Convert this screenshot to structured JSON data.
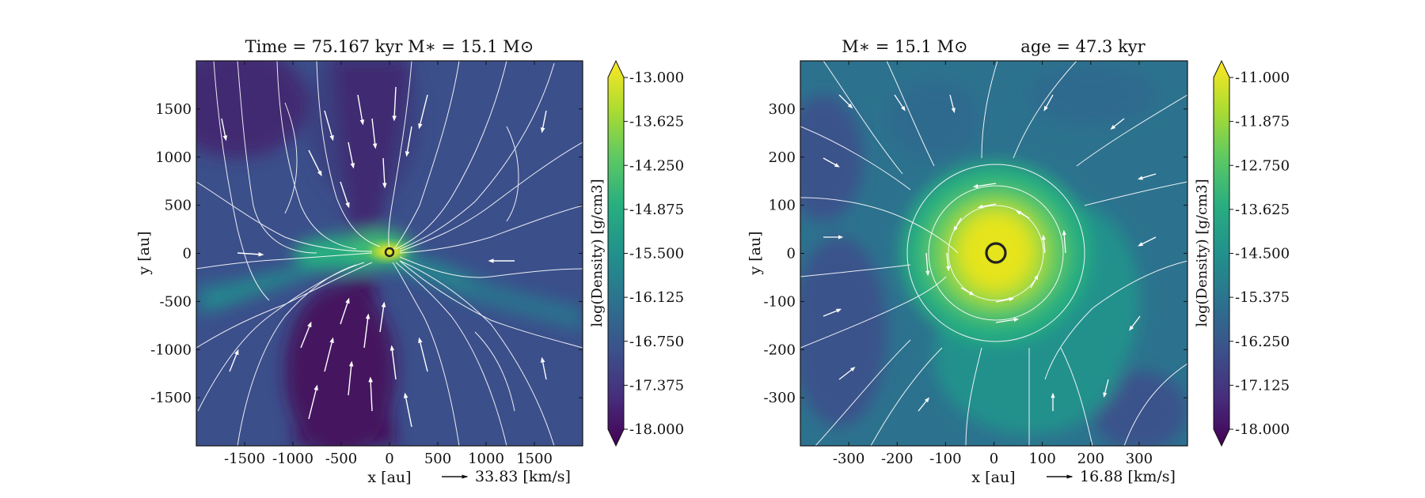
{
  "chart_data": [
    {
      "type": "heatmap",
      "title": "Time = 75.167 kyr    M∗ = 15.1 M⊙",
      "xlabel": "x [au]",
      "ylabel": "y [au]",
      "xlim": [
        -2000,
        2000
      ],
      "ylim": [
        -2000,
        2000
      ],
      "xticks": [
        -1500,
        -1000,
        -500,
        0,
        500,
        1000,
        1500
      ],
      "yticks": [
        1500,
        1000,
        500,
        0,
        -500,
        -1000,
        -1500
      ],
      "colorbar": {
        "label": "log(Density) [g/cm3]",
        "ticks": [
          "-13.000",
          "-13.625",
          "-14.250",
          "-14.875",
          "-15.500",
          "-16.125",
          "-16.750",
          "-17.375",
          "-18.000"
        ],
        "min": -18.0,
        "max": -13.0,
        "colormap": "viridis"
      },
      "velocity_key": "33.83 [km/s]",
      "star": {
        "x": 0,
        "y": 0
      },
      "field": "bipolar outflow with equatorial disk"
    },
    {
      "type": "heatmap",
      "title": "M∗ = 15.1 M⊙          age = 47.3 kyr",
      "xlabel": "x [au]",
      "ylabel": "y [au]",
      "xlim": [
        -400,
        400
      ],
      "ylim": [
        -400,
        400
      ],
      "xticks": [
        -300,
        -200,
        -100,
        0,
        100,
        200,
        300
      ],
      "yticks": [
        300,
        200,
        100,
        0,
        -100,
        -200,
        -300
      ],
      "colorbar": {
        "label": "log(Density) [g/cm3]",
        "ticks": [
          "-11.000",
          "-11.875",
          "-12.750",
          "-13.625",
          "-14.500",
          "-15.375",
          "-16.250",
          "-17.125",
          "-18.000"
        ],
        "min": -18.0,
        "max": -11.0,
        "colormap": "viridis"
      },
      "velocity_key": "16.88 [km/s]",
      "star": {
        "x": 0,
        "y": 0
      },
      "field": "rotating disk with spiral streams"
    }
  ]
}
